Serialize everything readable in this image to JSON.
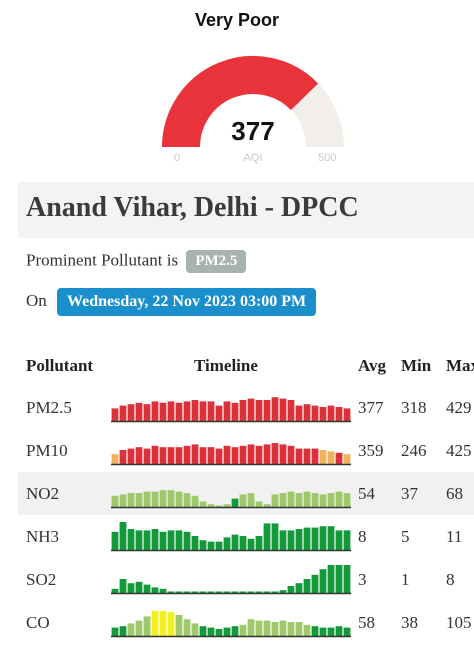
{
  "gauge": {
    "category": "Very Poor",
    "value": 377,
    "value_text": "377",
    "unit": "AQI",
    "min_label": "0",
    "max_label": "500",
    "min": 0,
    "max": 500,
    "fill_color": "#e8333a",
    "track_color": "#f2efeb"
  },
  "station": {
    "title": "Anand Vihar, Delhi - DPCC"
  },
  "prominent": {
    "label": "Prominent Pollutant is",
    "pollutant": "PM2.5"
  },
  "updated": {
    "label": "On",
    "datetime": "Wednesday, 22 Nov 2023 03:00 PM"
  },
  "table": {
    "headers": {
      "pollutant": "Pollutant",
      "timeline": "Timeline",
      "avg": "Avg",
      "min": "Min",
      "max": "Max"
    },
    "colors": {
      "red": "#d9323a",
      "orange": "#f2b25c",
      "lightgreen": "#9dc96a",
      "green": "#129a3a",
      "yellow": "#f4f01e"
    },
    "rows": [
      {
        "name": "PM2.5",
        "avg": "377",
        "min": "318",
        "max": "429",
        "levels": [
          0.45,
          0.55,
          0.6,
          0.65,
          0.6,
          0.7,
          0.65,
          0.7,
          0.65,
          0.7,
          0.75,
          0.7,
          0.7,
          0.55,
          0.7,
          0.65,
          0.75,
          0.8,
          0.75,
          0.75,
          0.85,
          0.8,
          0.75,
          0.55,
          0.6,
          0.55,
          0.5,
          0.55,
          0.5,
          0.45
        ],
        "colors": [
          "red",
          "red",
          "red",
          "red",
          "red",
          "red",
          "red",
          "red",
          "red",
          "red",
          "red",
          "red",
          "red",
          "red",
          "red",
          "red",
          "red",
          "red",
          "red",
          "red",
          "red",
          "red",
          "red",
          "red",
          "red",
          "red",
          "red",
          "red",
          "red",
          "red"
        ]
      },
      {
        "name": "PM10",
        "avg": "359",
        "min": "246",
        "max": "425",
        "levels": [
          0.35,
          0.5,
          0.55,
          0.6,
          0.55,
          0.65,
          0.6,
          0.6,
          0.6,
          0.65,
          0.7,
          0.6,
          0.6,
          0.55,
          0.65,
          0.6,
          0.65,
          0.7,
          0.65,
          0.7,
          0.75,
          0.7,
          0.65,
          0.55,
          0.55,
          0.55,
          0.5,
          0.45,
          0.4,
          0.35
        ],
        "colors": [
          "orange",
          "red",
          "red",
          "red",
          "red",
          "red",
          "red",
          "red",
          "red",
          "red",
          "red",
          "red",
          "red",
          "red",
          "red",
          "red",
          "red",
          "red",
          "red",
          "red",
          "red",
          "red",
          "red",
          "red",
          "red",
          "red",
          "orange",
          "orange",
          "red",
          "orange"
        ]
      },
      {
        "name": "NO2",
        "avg": "54",
        "min": "37",
        "max": "68",
        "levels": [
          0.4,
          0.45,
          0.5,
          0.5,
          0.55,
          0.55,
          0.6,
          0.6,
          0.55,
          0.5,
          0.4,
          0.2,
          0.1,
          0.05,
          0.1,
          0.3,
          0.45,
          0.5,
          0.2,
          0.1,
          0.45,
          0.5,
          0.55,
          0.5,
          0.55,
          0.5,
          0.45,
          0.5,
          0.55,
          0.5
        ],
        "colors": [
          "lightgreen",
          "lightgreen",
          "lightgreen",
          "lightgreen",
          "lightgreen",
          "lightgreen",
          "lightgreen",
          "lightgreen",
          "lightgreen",
          "lightgreen",
          "lightgreen",
          "lightgreen",
          "lightgreen",
          "lightgreen",
          "lightgreen",
          "green",
          "lightgreen",
          "lightgreen",
          "lightgreen",
          "lightgreen",
          "lightgreen",
          "lightgreen",
          "lightgreen",
          "lightgreen",
          "lightgreen",
          "lightgreen",
          "lightgreen",
          "lightgreen",
          "lightgreen",
          "lightgreen"
        ]
      },
      {
        "name": "NH3",
        "avg": "8",
        "min": "5",
        "max": "11",
        "levels": [
          0.65,
          1.0,
          0.75,
          0.7,
          0.7,
          0.75,
          0.65,
          0.7,
          0.7,
          0.65,
          0.5,
          0.35,
          0.3,
          0.3,
          0.45,
          0.55,
          0.5,
          0.4,
          0.5,
          0.95,
          0.95,
          0.7,
          0.7,
          0.75,
          0.8,
          0.8,
          0.85,
          0.85,
          0.7,
          0.7
        ],
        "colors": [
          "green",
          "green",
          "green",
          "green",
          "green",
          "green",
          "green",
          "green",
          "green",
          "green",
          "green",
          "green",
          "green",
          "green",
          "green",
          "green",
          "green",
          "green",
          "green",
          "green",
          "green",
          "green",
          "green",
          "green",
          "green",
          "green",
          "green",
          "green",
          "green",
          "green"
        ]
      },
      {
        "name": "SO2",
        "avg": "3",
        "min": "1",
        "max": "8",
        "levels": [
          0.15,
          0.5,
          0.35,
          0.4,
          0.3,
          0.2,
          0.15,
          0.05,
          0.05,
          0.05,
          0.05,
          0.05,
          0.05,
          0.05,
          0.05,
          0.05,
          0.05,
          0.05,
          0.05,
          0.05,
          0.05,
          0.1,
          0.25,
          0.35,
          0.5,
          0.65,
          0.85,
          1.0,
          1.0,
          1.0
        ],
        "colors": [
          "green",
          "green",
          "green",
          "green",
          "green",
          "green",
          "green",
          "green",
          "green",
          "green",
          "green",
          "green",
          "green",
          "green",
          "green",
          "green",
          "green",
          "green",
          "green",
          "green",
          "green",
          "green",
          "green",
          "green",
          "green",
          "green",
          "green",
          "green",
          "green",
          "green"
        ]
      },
      {
        "name": "CO",
        "avg": "58",
        "min": "38",
        "max": "105",
        "levels": [
          0.3,
          0.35,
          0.45,
          0.55,
          0.7,
          0.9,
          0.9,
          0.85,
          0.75,
          0.6,
          0.45,
          0.35,
          0.3,
          0.25,
          0.3,
          0.35,
          0.4,
          0.6,
          0.55,
          0.55,
          0.5,
          0.55,
          0.5,
          0.5,
          0.4,
          0.35,
          0.3,
          0.3,
          0.35,
          0.3
        ],
        "colors": [
          "green",
          "green",
          "lightgreen",
          "lightgreen",
          "lightgreen",
          "yellow",
          "yellow",
          "yellow",
          "lightgreen",
          "lightgreen",
          "lightgreen",
          "green",
          "green",
          "green",
          "green",
          "green",
          "lightgreen",
          "lightgreen",
          "lightgreen",
          "lightgreen",
          "lightgreen",
          "lightgreen",
          "lightgreen",
          "lightgreen",
          "lightgreen",
          "green",
          "green",
          "green",
          "green",
          "green"
        ]
      }
    ]
  }
}
